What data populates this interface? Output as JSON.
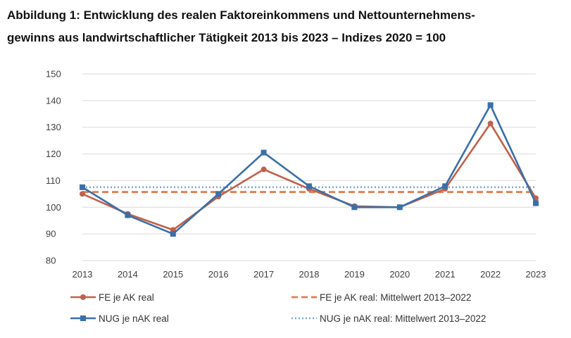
{
  "chart_data": {
    "type": "line",
    "title_line1": "Abbildung 1: Entwicklung des realen Faktoreinkommens und Nettounternehmens-",
    "title_line2": "gewinns aus landwirtschaftlicher Tätigkeit 2013 bis 2023 – Indizes 2020 = 100",
    "xlabel": "",
    "ylabel": "",
    "x": [
      "2013",
      "2014",
      "2015",
      "2016",
      "2017",
      "2018",
      "2019",
      "2020",
      "2021",
      "2022",
      "2023"
    ],
    "ylim": [
      80,
      150
    ],
    "yticks": [
      80,
      90,
      100,
      110,
      120,
      130,
      140,
      150
    ],
    "grid": true,
    "legend_position": "bottom",
    "series": [
      {
        "name": "FE je AK real",
        "style": "solid-circle",
        "color": "#C0614A",
        "values": [
          105.0,
          97.5,
          91.5,
          104.0,
          114.2,
          106.9,
          100.4,
          100.0,
          106.9,
          131.4,
          103.4
        ]
      },
      {
        "name": "NUG je nAK real",
        "style": "solid-square",
        "color": "#3A6FA8",
        "values": [
          107.5,
          97.0,
          90.0,
          105.0,
          120.5,
          107.9,
          100.0,
          100.0,
          107.9,
          138.3,
          101.5
        ]
      }
    ],
    "reference_lines": [
      {
        "name": "FE je AK real: Mittelwert 2013–2022",
        "style": "dashed",
        "color": "#E07B4F",
        "value": 105.7
      },
      {
        "name": "NUG je nAK real: Mittelwert 2013–2022",
        "style": "dotted",
        "color": "#7BA7D7",
        "value": 107.5
      }
    ]
  }
}
